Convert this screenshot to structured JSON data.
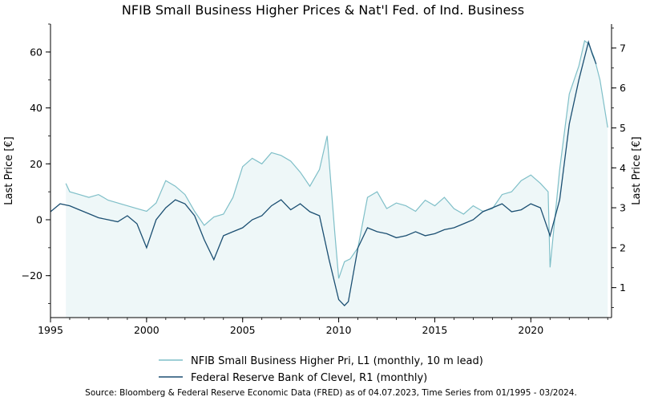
{
  "chart_data": {
    "type": "line",
    "title": "NFIB Small Business Higher Prices & Nat'l Fed. of Ind. Business",
    "ylabel_left": "Last Price [€]",
    "ylabel_right": "Last Price [€]",
    "xlim": [
      1995,
      2024.2
    ],
    "ylim_left": [
      -35,
      70
    ],
    "ylim_right": [
      0.25,
      7.6
    ],
    "x_ticks": [
      1995,
      2000,
      2005,
      2010,
      2015,
      2020
    ],
    "y_ticks_left": [
      -20,
      0,
      20,
      40,
      60
    ],
    "y_ticks_right": [
      1,
      2,
      3,
      4,
      5,
      6,
      7
    ],
    "grid": false,
    "legend_position": "bottom-center",
    "series": [
      {
        "name": "NFIB Small Business Higher Pri, L1 (monthly, 10 m lead)",
        "axis": "left",
        "color": "#7fbfc8",
        "fill": "#eef7f8",
        "x": [
          1995.8,
          1996.0,
          1996.5,
          1997.0,
          1997.5,
          1998.0,
          1998.5,
          1999.0,
          1999.5,
          2000.0,
          2000.5,
          2001.0,
          2001.5,
          2002.0,
          2002.5,
          2003.0,
          2003.5,
          2004.0,
          2004.5,
          2005.0,
          2005.5,
          2006.0,
          2006.5,
          2007.0,
          2007.5,
          2008.0,
          2008.5,
          2009.0,
          2009.4,
          2009.8,
          2010.0,
          2010.3,
          2010.6,
          2011.0,
          2011.5,
          2012.0,
          2012.5,
          2013.0,
          2013.5,
          2014.0,
          2014.5,
          2015.0,
          2015.5,
          2016.0,
          2016.5,
          2017.0,
          2017.5,
          2018.0,
          2018.5,
          2019.0,
          2019.5,
          2020.0,
          2020.5,
          2020.9,
          2021.0,
          2021.5,
          2022.0,
          2022.5,
          2022.8,
          2023.0,
          2023.3,
          2023.6,
          2024.0
        ],
        "values": [
          13,
          10,
          9,
          8,
          9,
          7,
          6,
          5,
          4,
          3,
          6,
          14,
          12,
          9,
          3,
          -2,
          1,
          2,
          8,
          19,
          22,
          20,
          24,
          23,
          21,
          17,
          12,
          18,
          30,
          -5,
          -21,
          -15,
          -14,
          -10,
          8,
          10,
          4,
          6,
          5,
          3,
          7,
          5,
          8,
          4,
          2,
          5,
          3,
          4,
          9,
          10,
          14,
          16,
          13,
          10,
          -17,
          18,
          45,
          55,
          64,
          63,
          58,
          50,
          33
        ]
      },
      {
        "name": "Federal Reserve Bank of Clevel, R1 (monthly)",
        "axis": "right",
        "color": "#1b4f72",
        "x": [
          1995.0,
          1995.5,
          1996.0,
          1996.5,
          1997.0,
          1997.5,
          1998.0,
          1998.5,
          1999.0,
          1999.5,
          2000.0,
          2000.5,
          2001.0,
          2001.5,
          2002.0,
          2002.5,
          2003.0,
          2003.5,
          2004.0,
          2004.5,
          2005.0,
          2005.5,
          2006.0,
          2006.5,
          2007.0,
          2007.5,
          2008.0,
          2008.5,
          2009.0,
          2009.5,
          2010.0,
          2010.3,
          2010.5,
          2011.0,
          2011.5,
          2012.0,
          2012.5,
          2013.0,
          2013.5,
          2014.0,
          2014.5,
          2015.0,
          2015.5,
          2016.0,
          2016.5,
          2017.0,
          2017.5,
          2018.0,
          2018.5,
          2019.0,
          2019.5,
          2020.0,
          2020.5,
          2021.0,
          2021.5,
          2022.0,
          2022.5,
          2023.0,
          2023.2,
          2023.4
        ],
        "values": [
          2.9,
          3.1,
          3.05,
          2.95,
          2.85,
          2.75,
          2.7,
          2.65,
          2.8,
          2.6,
          2.0,
          2.7,
          3.0,
          3.2,
          3.1,
          2.8,
          2.2,
          1.7,
          2.3,
          2.4,
          2.5,
          2.7,
          2.8,
          3.05,
          3.2,
          2.95,
          3.1,
          2.9,
          2.8,
          1.7,
          0.7,
          0.55,
          0.65,
          2.0,
          2.5,
          2.4,
          2.35,
          2.25,
          2.3,
          2.4,
          2.3,
          2.35,
          2.45,
          2.5,
          2.6,
          2.7,
          2.9,
          3.0,
          3.1,
          2.9,
          2.95,
          3.1,
          3.0,
          2.3,
          3.2,
          5.1,
          6.2,
          7.15,
          6.85,
          6.6
        ]
      }
    ]
  },
  "source_text": "Source: Bloomberg & Federal Reserve Economic Data (FRED) as of 04.07.2023, Time Series from 01/1995 - 03/2024."
}
